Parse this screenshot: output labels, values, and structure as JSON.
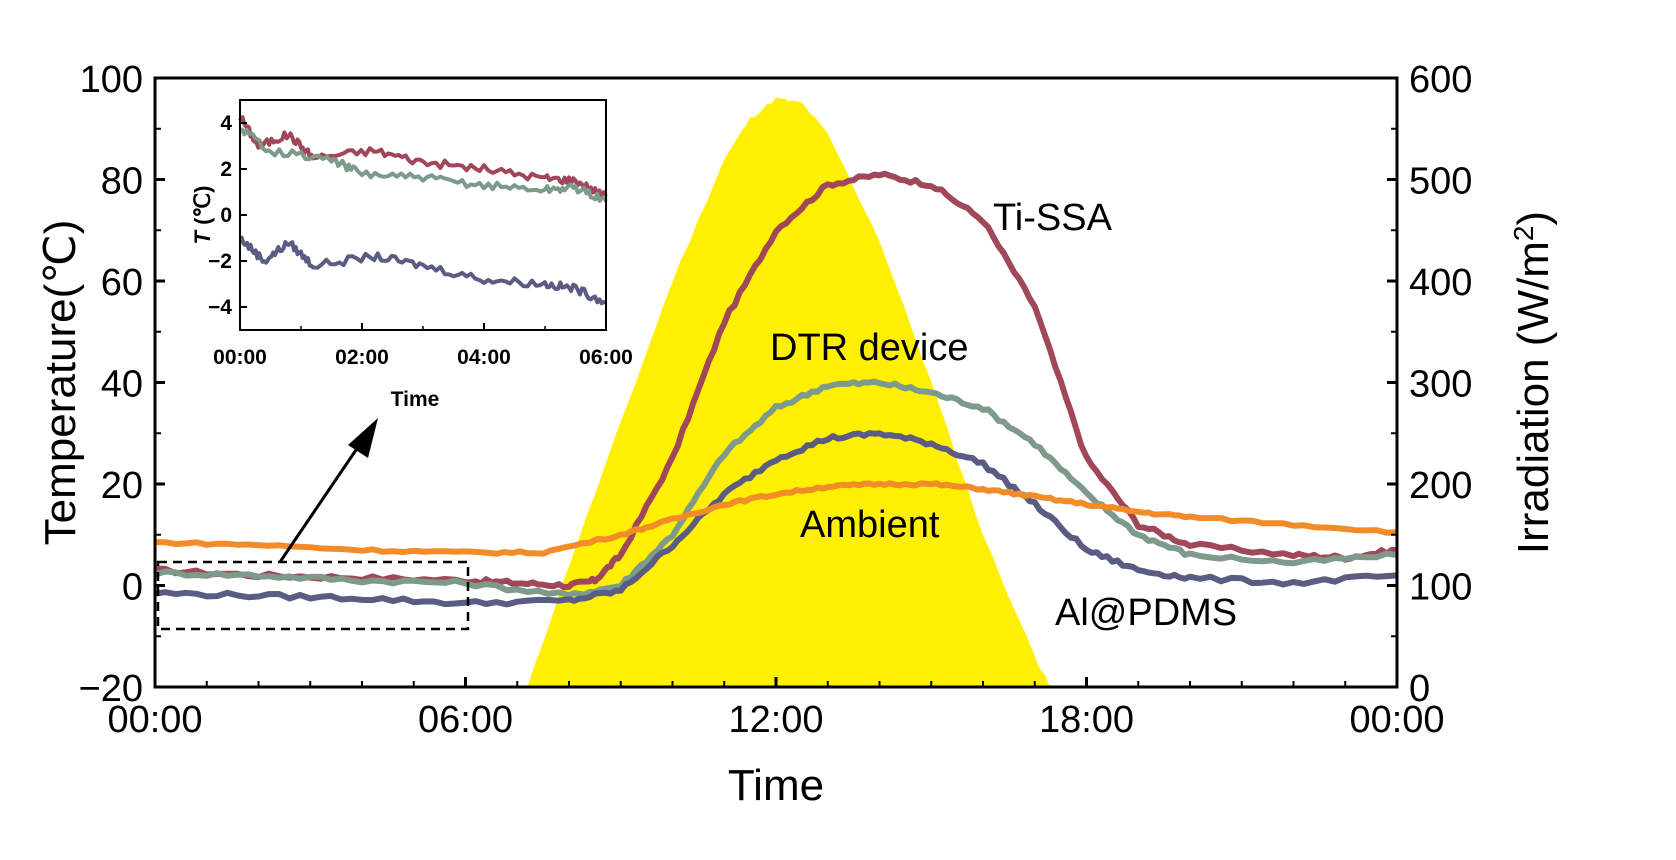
{
  "chart_data": [
    {
      "type": "line",
      "title": "",
      "xlabel": "Time",
      "ylabel": "Temperature(℃)",
      "y2label": "Irradiation (W/m²)",
      "x_ticks": [
        "00:00",
        "06:00",
        "12:00",
        "18:00",
        "00:00"
      ],
      "x_hours_range": [
        0,
        24
      ],
      "ylim": [
        -20,
        100
      ],
      "y_ticks": [
        -20,
        0,
        20,
        40,
        60,
        80,
        100
      ],
      "y2lim": [
        0,
        600
      ],
      "y2_ticks": [
        0,
        100,
        200,
        300,
        400,
        500,
        600
      ],
      "irradiation": {
        "color": "#FFEF00",
        "points": [
          [
            7.2,
            0
          ],
          [
            8,
            120
          ],
          [
            9,
            260
          ],
          [
            10,
            400
          ],
          [
            11,
            520
          ],
          [
            11.5,
            560
          ],
          [
            12,
            580
          ],
          [
            12.5,
            575
          ],
          [
            13,
            545
          ],
          [
            14,
            440
          ],
          [
            15,
            300
          ],
          [
            16,
            150
          ],
          [
            17,
            30
          ],
          [
            17.3,
            0
          ]
        ]
      },
      "series": [
        {
          "name": "Ti-SSA",
          "color": "#A0485A",
          "points": [
            [
              0,
              3
            ],
            [
              2,
              2
            ],
            [
              4,
              1.5
            ],
            [
              6,
              1
            ],
            [
              7,
              0.5
            ],
            [
              8,
              0
            ],
            [
              8.5,
              1
            ],
            [
              9,
              6
            ],
            [
              10,
              25
            ],
            [
              11,
              52
            ],
            [
              12,
              70
            ],
            [
              13,
              79
            ],
            [
              14,
              81
            ],
            [
              15,
              79
            ],
            [
              16,
              72
            ],
            [
              17,
              55
            ],
            [
              18,
              25
            ],
            [
              19,
              12
            ],
            [
              20,
              8
            ],
            [
              22,
              6
            ],
            [
              23,
              5.5
            ],
            [
              24,
              7
            ]
          ]
        },
        {
          "name": "DTR device",
          "color": "#7D9A8B",
          "points": [
            [
              0,
              2.5
            ],
            [
              2,
              2
            ],
            [
              4,
              1
            ],
            [
              6,
              0.5
            ],
            [
              8,
              -2
            ],
            [
              9,
              0
            ],
            [
              10,
              10
            ],
            [
              11,
              26
            ],
            [
              12,
              35
            ],
            [
              13,
              39.5
            ],
            [
              14,
              40
            ],
            [
              15,
              38
            ],
            [
              16,
              35
            ],
            [
              17,
              28
            ],
            [
              18,
              18
            ],
            [
              19,
              10
            ],
            [
              20,
              6
            ],
            [
              22,
              4.5
            ],
            [
              24,
              6
            ]
          ]
        },
        {
          "name": "Al@PDMS",
          "color": "#5B5C84",
          "points": [
            [
              0,
              -1.5
            ],
            [
              2,
              -2
            ],
            [
              4,
              -2.5
            ],
            [
              6,
              -3.5
            ],
            [
              8,
              -3
            ],
            [
              9,
              -1
            ],
            [
              10,
              8
            ],
            [
              11,
              18
            ],
            [
              12,
              25
            ],
            [
              13,
              29
            ],
            [
              14,
              30
            ],
            [
              15,
              28
            ],
            [
              16,
              24
            ],
            [
              17,
              16
            ],
            [
              18,
              7
            ],
            [
              19,
              3
            ],
            [
              20,
              1.5
            ],
            [
              22,
              0.5
            ],
            [
              24,
              2
            ]
          ]
        },
        {
          "name": "Ambient",
          "color": "#F28C28",
          "points": [
            [
              0,
              8.5
            ],
            [
              2,
              8
            ],
            [
              4,
              7
            ],
            [
              6,
              6.5
            ],
            [
              7.5,
              6.5
            ],
            [
              9,
              10
            ],
            [
              10,
              13
            ],
            [
              11,
              16
            ],
            [
              12,
              18
            ],
            [
              13,
              19.5
            ],
            [
              14,
              20
            ],
            [
              15,
              20
            ],
            [
              16,
              19
            ],
            [
              17,
              17.5
            ],
            [
              18,
              16
            ],
            [
              19,
              14.5
            ],
            [
              20,
              13.5
            ],
            [
              22,
              12
            ],
            [
              24,
              10.5
            ]
          ]
        }
      ],
      "annotations": [
        "Ti-SSA",
        "DTR device",
        "Ambient",
        "Al@PDMS"
      ]
    },
    {
      "type": "line",
      "title": "",
      "xlabel": "Time",
      "ylabel_symbol": "T",
      "ylabel_unit": " (℃)",
      "x_ticks": [
        "00:00",
        "02:00",
        "04:00",
        "06:00"
      ],
      "x_hours_range": [
        0,
        6
      ],
      "ylim": [
        -5,
        5
      ],
      "y_ticks": [
        4,
        2,
        0,
        -2,
        -4
      ],
      "series": [
        {
          "name": "Ti-SSA",
          "color": "#A0485A",
          "points": [
            [
              0,
              4.3
            ],
            [
              0.3,
              3
            ],
            [
              0.8,
              3.5
            ],
            [
              1.2,
              2.5
            ],
            [
              2.2,
              2.8
            ],
            [
              3,
              2.3
            ],
            [
              4,
              2
            ],
            [
              5,
              1.6
            ],
            [
              5.5,
              1.5
            ],
            [
              6,
              0.8
            ]
          ]
        },
        {
          "name": "DTR device",
          "color": "#7D9A8B",
          "points": [
            [
              0,
              3.8
            ],
            [
              0.5,
              2.8
            ],
            [
              1.5,
              2.4
            ],
            [
              2,
              1.8
            ],
            [
              3,
              1.6
            ],
            [
              4,
              1.3
            ],
            [
              5,
              1.1
            ],
            [
              5.5,
              1.2
            ],
            [
              6,
              0.6
            ]
          ]
        },
        {
          "name": "Al@PDMS",
          "color": "#5B5C84",
          "points": [
            [
              0,
              -1
            ],
            [
              0.4,
              -2
            ],
            [
              0.8,
              -1.2
            ],
            [
              1.2,
              -2.2
            ],
            [
              2.2,
              -1.8
            ],
            [
              3,
              -2.2
            ],
            [
              4,
              -2.8
            ],
            [
              5,
              -3
            ],
            [
              5.5,
              -3.2
            ],
            [
              6,
              -3.8
            ]
          ]
        }
      ]
    }
  ]
}
